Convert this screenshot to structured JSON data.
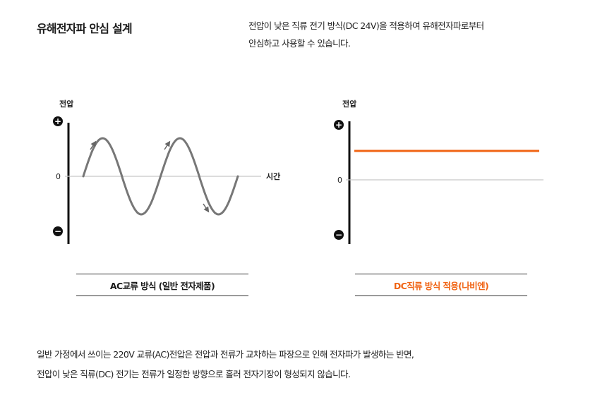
{
  "heading": "유해전자파 안심 설계",
  "intro": {
    "line1": "전압이 낮은 직류 전기 방식(DC 24V)을 적용하여 유해전자파로부터",
    "line2": "안심하고 사용할 수 있습니다."
  },
  "ac_chart": {
    "ylabel": "전압",
    "xlabel": "시간",
    "zero_label": "0",
    "plus_symbol": "+",
    "minus_symbol": "−",
    "caption": "AC교류 방식 (일반 전자제품)"
  },
  "dc_chart": {
    "ylabel": "전압",
    "zero_label": "0",
    "plus_symbol": "+",
    "minus_symbol": "−",
    "caption": "DC직류 방식 적용(나비엔)",
    "line_color": "#f06414"
  },
  "footer": {
    "line1": "일반 가정에서 쓰이는 220V 교류(AC)전압은 전압과 전류가 교차하는 파장으로 인해 전자파가 발생하는 반면,",
    "line2": "전압이 낮은 직류(DC) 전기는 전류가 일정한 방향으로 흘러 전자기장이 형성되지 않습니다."
  }
}
